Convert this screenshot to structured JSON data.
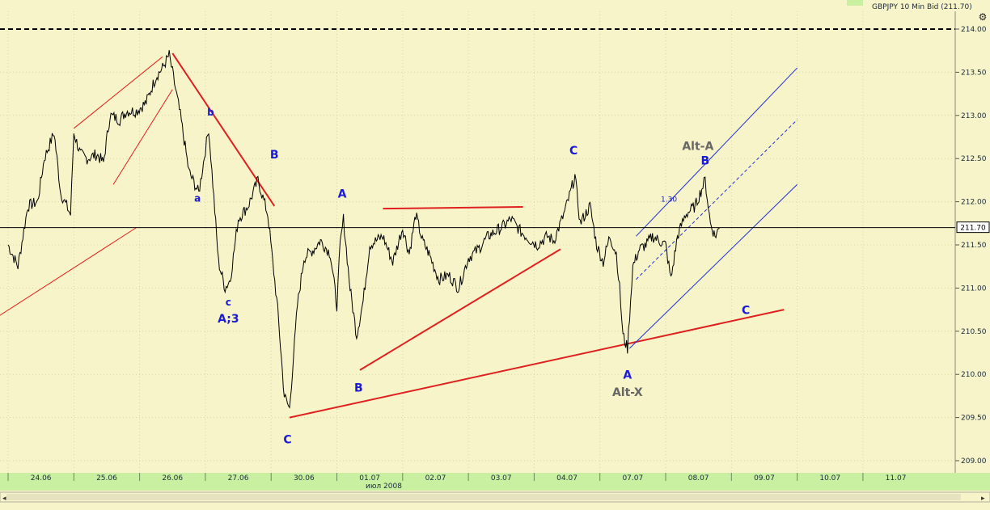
{
  "window": {
    "title": "GBPJPY 10 Min Bid (211.70)"
  },
  "price_badge": "211.70",
  "colors": {
    "background": "#f6f4c8",
    "price": "#000000",
    "trendline": "#e02020",
    "channel": "#1f2fd8",
    "wave_label": "#1a1ad8",
    "alt_label": "#666666",
    "axis_bar": "#c8f0a0"
  },
  "chart_data": {
    "type": "line",
    "title": "GBPJPY 10 Min Bid (211.70)",
    "ylim": [
      208.9,
      214.2
    ],
    "y_ticks": [
      "214.00",
      "213.50",
      "213.00",
      "212.50",
      "212.00",
      "211.50",
      "211.00",
      "210.50",
      "210.00",
      "209.50",
      "209.00"
    ],
    "x_ticks": [
      "24.06",
      "25.06",
      "26.06",
      "27.06",
      "30.06",
      "01.07",
      "02.07",
      "03.07",
      "04.07",
      "07.07",
      "08.07",
      "09.07",
      "10.07",
      "11.07"
    ],
    "x_sublabel": "июл 2008",
    "last_price": 211.7,
    "dashed_level": 214.0,
    "series": [
      {
        "values": [
          [
            0.0,
            211.5
          ],
          [
            0.15,
            211.25
          ],
          [
            0.3,
            211.95
          ],
          [
            0.45,
            212.0
          ],
          [
            0.55,
            212.5
          ],
          [
            0.7,
            212.8
          ],
          [
            0.8,
            212.1
          ],
          [
            0.95,
            211.85
          ],
          [
            1.0,
            212.8
          ],
          [
            1.1,
            212.55
          ],
          [
            1.2,
            212.5
          ],
          [
            1.35,
            212.55
          ],
          [
            1.45,
            212.45
          ],
          [
            1.55,
            213.0
          ],
          [
            1.7,
            212.95
          ],
          [
            1.8,
            213.05
          ],
          [
            1.95,
            213.05
          ],
          [
            2.1,
            213.15
          ],
          [
            2.25,
            213.45
          ],
          [
            2.35,
            213.55
          ],
          [
            2.45,
            213.7
          ],
          [
            2.5,
            213.5
          ],
          [
            2.62,
            213.0
          ],
          [
            2.75,
            212.35
          ],
          [
            2.9,
            212.1
          ],
          [
            3.0,
            212.6
          ],
          [
            3.05,
            212.85
          ],
          [
            3.1,
            212.35
          ],
          [
            3.2,
            211.3
          ],
          [
            3.3,
            211.0
          ],
          [
            3.38,
            211.1
          ],
          [
            3.5,
            211.8
          ],
          [
            3.65,
            211.95
          ],
          [
            3.8,
            212.25
          ],
          [
            3.95,
            211.85
          ],
          [
            4.1,
            210.75
          ],
          [
            4.2,
            209.75
          ],
          [
            4.28,
            209.6
          ],
          [
            4.4,
            210.8
          ],
          [
            4.5,
            211.35
          ],
          [
            4.65,
            211.45
          ],
          [
            4.75,
            211.55
          ],
          [
            4.9,
            211.4
          ],
          [
            5.0,
            210.8
          ],
          [
            5.05,
            211.5
          ],
          [
            5.1,
            211.8
          ],
          [
            5.2,
            211.0
          ],
          [
            5.3,
            210.45
          ],
          [
            5.4,
            210.85
          ],
          [
            5.5,
            211.5
          ],
          [
            5.7,
            211.6
          ],
          [
            5.85,
            211.3
          ],
          [
            6.0,
            211.7
          ],
          [
            6.1,
            211.4
          ],
          [
            6.2,
            211.85
          ],
          [
            6.3,
            211.55
          ],
          [
            6.4,
            211.4
          ],
          [
            6.55,
            211.1
          ],
          [
            6.7,
            211.15
          ],
          [
            6.85,
            211.0
          ],
          [
            7.0,
            211.35
          ],
          [
            7.15,
            211.45
          ],
          [
            7.3,
            211.6
          ],
          [
            7.5,
            211.7
          ],
          [
            7.65,
            211.8
          ],
          [
            7.8,
            211.65
          ],
          [
            7.95,
            211.55
          ],
          [
            8.05,
            211.5
          ],
          [
            8.2,
            211.6
          ],
          [
            8.3,
            211.55
          ],
          [
            8.45,
            211.85
          ],
          [
            8.55,
            212.1
          ],
          [
            8.62,
            212.3
          ],
          [
            8.7,
            211.75
          ],
          [
            8.85,
            211.95
          ],
          [
            8.95,
            211.5
          ],
          [
            9.05,
            211.3
          ],
          [
            9.15,
            211.6
          ],
          [
            9.25,
            211.4
          ],
          [
            9.3,
            211.0
          ],
          [
            9.35,
            210.45
          ],
          [
            9.42,
            210.3
          ],
          [
            9.5,
            211.25
          ],
          [
            9.6,
            211.45
          ],
          [
            9.7,
            211.5
          ],
          [
            9.8,
            211.6
          ],
          [
            9.9,
            211.55
          ],
          [
            10.0,
            211.5
          ],
          [
            10.08,
            211.1
          ],
          [
            10.18,
            211.6
          ],
          [
            10.3,
            211.85
          ],
          [
            10.45,
            211.95
          ],
          [
            10.55,
            212.15
          ],
          [
            10.6,
            212.25
          ],
          [
            10.68,
            211.75
          ],
          [
            10.75,
            211.6
          ],
          [
            10.82,
            211.7
          ]
        ]
      }
    ],
    "annotations": [
      {
        "text": "a",
        "x": 2.88,
        "y": 212.0,
        "color": "#1a1ad8",
        "size": "small"
      },
      {
        "text": "b",
        "x": 3.08,
        "y": 213.0,
        "color": "#1a1ad8",
        "size": "small"
      },
      {
        "text": "c",
        "x": 3.35,
        "y": 210.8,
        "color": "#1a1ad8",
        "size": "small"
      },
      {
        "text": "A;3",
        "x": 3.35,
        "y": 210.6,
        "color": "#1a1ad8",
        "size": "large"
      },
      {
        "text": "B",
        "x": 4.05,
        "y": 212.5,
        "color": "#1a1ad8",
        "size": "large"
      },
      {
        "text": "C",
        "x": 4.25,
        "y": 209.2,
        "color": "#1a1ad8",
        "size": "large"
      },
      {
        "text": "A",
        "x": 5.08,
        "y": 212.05,
        "color": "#1a1ad8",
        "size": "large"
      },
      {
        "text": "B",
        "x": 5.33,
        "y": 209.8,
        "color": "#1a1ad8",
        "size": "large"
      },
      {
        "text": "C",
        "x": 8.6,
        "y": 212.55,
        "color": "#1a1ad8",
        "size": "large"
      },
      {
        "text": "A",
        "x": 9.42,
        "y": 209.95,
        "color": "#1a1ad8",
        "size": "large"
      },
      {
        "text": "Alt-X",
        "x": 9.42,
        "y": 209.75,
        "color": "#666666",
        "size": "large"
      },
      {
        "text": "C",
        "x": 11.22,
        "y": 210.7,
        "color": "#1a1ad8",
        "size": "large"
      },
      {
        "text": "B",
        "x": 10.6,
        "y": 212.43,
        "color": "#1a1ad8",
        "size": "large"
      },
      {
        "text": "Alt-A",
        "x": 10.49,
        "y": 212.6,
        "color": "#666666",
        "size": "large"
      },
      {
        "text": "1.30",
        "x": 10.05,
        "y": 212.0,
        "color": "#1a1ad8",
        "size": "tiny"
      }
    ],
    "trendlines": [
      {
        "color": "red",
        "width": 1,
        "points": [
          [
            -0.5,
            210.5
          ],
          [
            1.95,
            211.7
          ]
        ]
      },
      {
        "color": "red",
        "width": 1,
        "points": [
          [
            1.0,
            212.85
          ],
          [
            2.35,
            213.68
          ]
        ]
      },
      {
        "color": "red",
        "width": 1,
        "points": [
          [
            1.6,
            212.2
          ],
          [
            2.5,
            213.3
          ]
        ]
      },
      {
        "color": "red",
        "width": 2,
        "points": [
          [
            2.5,
            213.72
          ],
          [
            4.05,
            211.95
          ]
        ]
      },
      {
        "color": "red",
        "width": 2,
        "points": [
          [
            4.28,
            209.5
          ],
          [
            11.8,
            210.75
          ]
        ]
      },
      {
        "color": "red",
        "width": 2,
        "points": [
          [
            5.35,
            210.05
          ],
          [
            8.4,
            211.45
          ]
        ]
      },
      {
        "color": "red",
        "width": 2,
        "points": [
          [
            5.7,
            211.92
          ],
          [
            7.83,
            211.94
          ]
        ]
      },
      {
        "color": "blue",
        "width": 1,
        "points": [
          [
            9.55,
            211.6
          ],
          [
            12.0,
            213.55
          ]
        ]
      },
      {
        "color": "blue",
        "width": 1,
        "points": [
          [
            9.45,
            210.3
          ],
          [
            12.0,
            212.2
          ]
        ]
      },
      {
        "color": "blue",
        "width": 1,
        "dashed": true,
        "points": [
          [
            9.55,
            211.1
          ],
          [
            12.0,
            212.95
          ]
        ]
      }
    ]
  }
}
